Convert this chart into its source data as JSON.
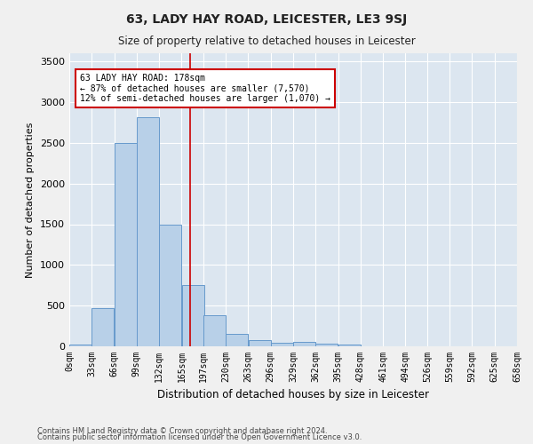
{
  "title": "63, LADY HAY ROAD, LEICESTER, LE3 9SJ",
  "subtitle": "Size of property relative to detached houses in Leicester",
  "xlabel": "Distribution of detached houses by size in Leicester",
  "ylabel": "Number of detached properties",
  "bar_color": "#b8d0e8",
  "bar_edgecolor": "#6699cc",
  "background_color": "#dce6f0",
  "fig_background_color": "#f0f0f0",
  "grid_color": "#ffffff",
  "bins": [
    0,
    33,
    66,
    99,
    132,
    165,
    197,
    230,
    263,
    296,
    329,
    362,
    395,
    428,
    461,
    494,
    526,
    559,
    592,
    625,
    658
  ],
  "bin_labels": [
    "0sqm",
    "33sqm",
    "66sqm",
    "99sqm",
    "132sqm",
    "165sqm",
    "197sqm",
    "230sqm",
    "263sqm",
    "296sqm",
    "329sqm",
    "362sqm",
    "395sqm",
    "428sqm",
    "461sqm",
    "494sqm",
    "526sqm",
    "559sqm",
    "592sqm",
    "625sqm",
    "658sqm"
  ],
  "values": [
    20,
    470,
    2500,
    2820,
    1500,
    750,
    380,
    150,
    80,
    40,
    50,
    30,
    20,
    0,
    0,
    0,
    0,
    0,
    0,
    0
  ],
  "property_size": 178,
  "property_line_color": "#cc0000",
  "annotation_line1": "63 LADY HAY ROAD: 178sqm",
  "annotation_line2": "← 87% of detached houses are smaller (7,570)",
  "annotation_line3": "12% of semi-detached houses are larger (1,070) →",
  "annotation_box_facecolor": "#ffffff",
  "annotation_box_edgecolor": "#cc0000",
  "ylim": [
    0,
    3600
  ],
  "yticks": [
    0,
    500,
    1000,
    1500,
    2000,
    2500,
    3000,
    3500
  ],
  "footnote1": "Contains HM Land Registry data © Crown copyright and database right 2024.",
  "footnote2": "Contains public sector information licensed under the Open Government Licence v3.0."
}
